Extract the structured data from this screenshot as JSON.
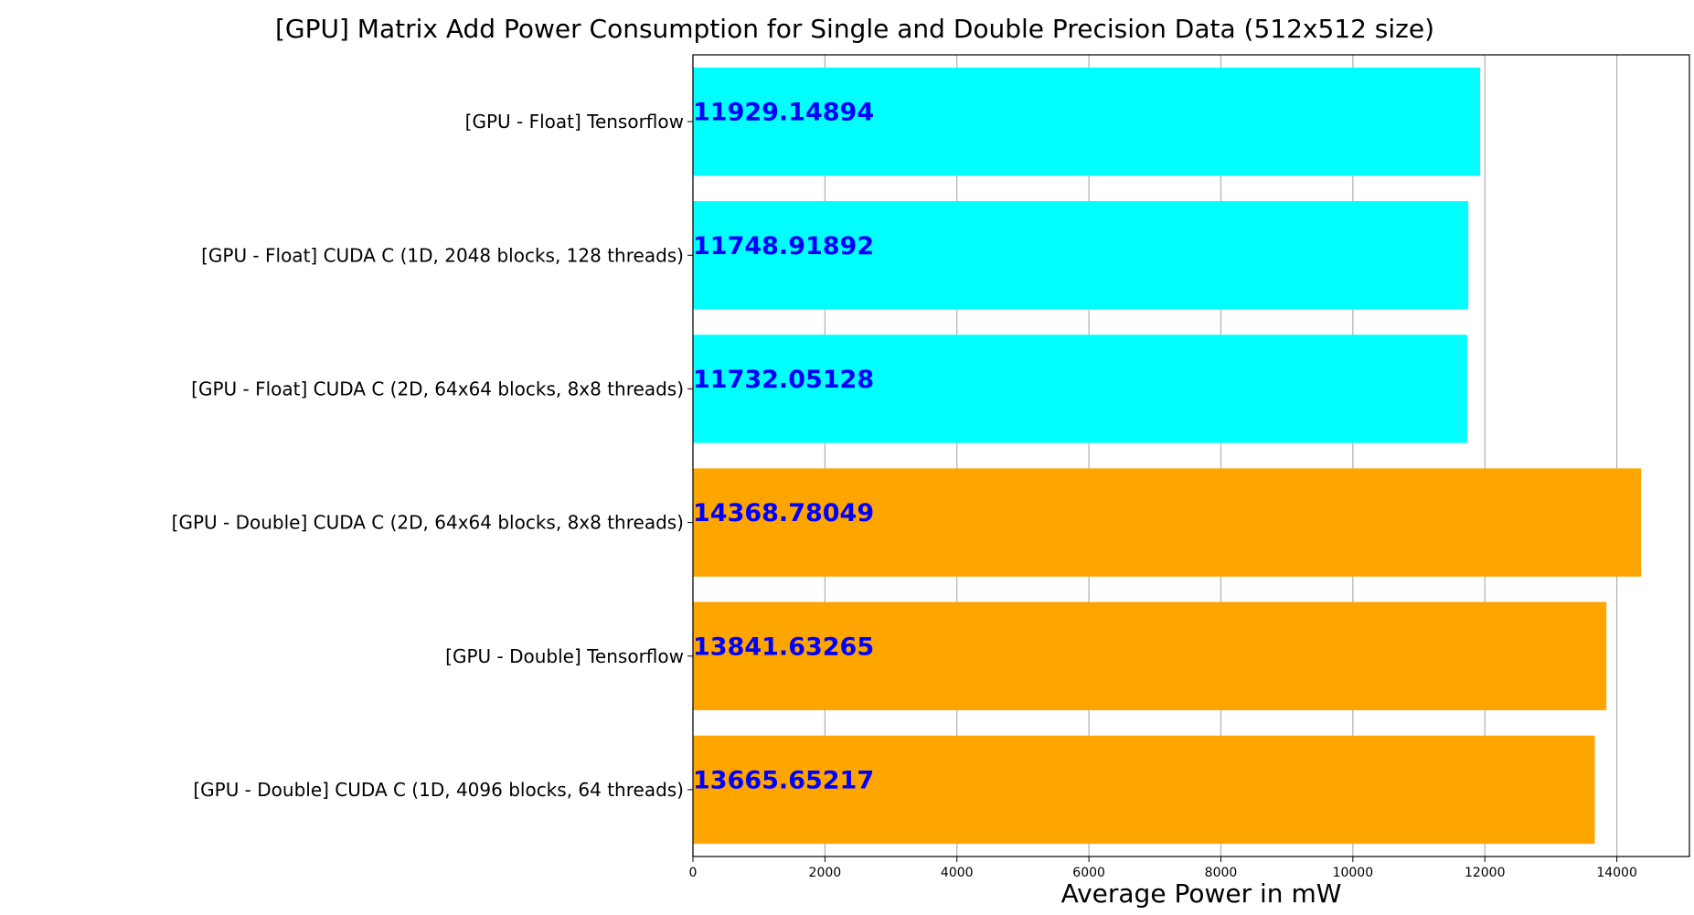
{
  "chart_data": {
    "type": "bar",
    "orientation": "horizontal",
    "title": "[GPU] Matrix Add Power Consumption for Single and Double Precision Data (512x512 size)",
    "xlabel": "Average Power in mW",
    "ylabel": "",
    "xlim": [
      0,
      15100
    ],
    "xticks": [
      0,
      2000,
      4000,
      6000,
      8000,
      10000,
      12000,
      14000
    ],
    "grid": "vertical",
    "categories": [
      "[GPU - Float] Tensorflow",
      "[GPU - Float] CUDA C (1D, 2048 blocks, 128 threads)",
      "[GPU - Float] CUDA C (2D, 64x64 blocks, 8x8 threads)",
      "[GPU - Double] CUDA C (2D, 64x64 blocks, 8x8 threads)",
      "[GPU - Double] Tensorflow",
      "[GPU - Double] CUDA C (1D, 4096 blocks, 64 threads)"
    ],
    "values": [
      11929.14894,
      11748.91892,
      11732.05128,
      14368.78049,
      13841.63265,
      13665.65217
    ],
    "data_labels": [
      "11929.14894",
      "11748.91892",
      "11732.05128",
      "14368.78049",
      "13841.63265",
      "13665.65217"
    ],
    "bar_colors": [
      "#00ffff",
      "#00ffff",
      "#00ffff",
      "#ffa500",
      "#ffa500",
      "#ffa500"
    ],
    "data_label_color": "#0000ff",
    "grid_color": "#b0b0b0"
  }
}
